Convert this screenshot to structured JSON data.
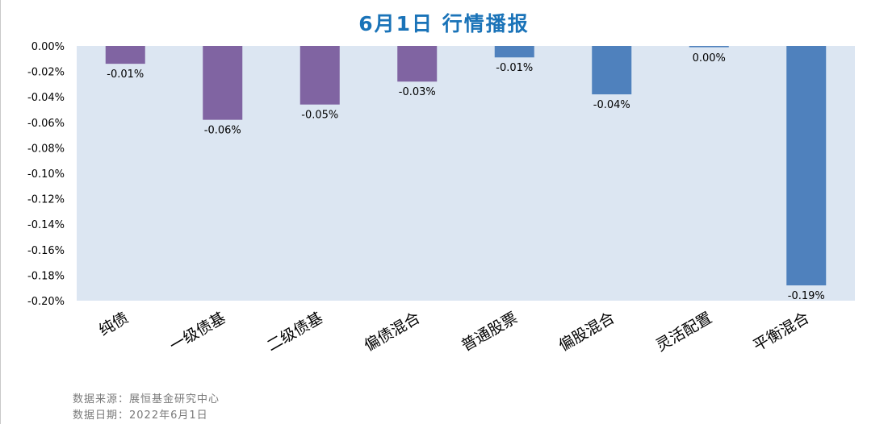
{
  "title": "6月1日  行情播报",
  "source_note": "数据来源：展恒基金研究中心",
  "date_note": "数据日期：2022年6月1日",
  "colors": {
    "purple": "#8064a2",
    "blue": "#4f81bd",
    "plot_bg": "#dce6f2",
    "title": "#1a73b8"
  },
  "chart_data": {
    "type": "bar",
    "title": "6月1日  行情播报",
    "xlabel": "",
    "ylabel": "",
    "ylim": [
      -0.2,
      0.0
    ],
    "y_ticks": [
      "0.00%",
      "-0.02%",
      "-0.04%",
      "-0.06%",
      "-0.08%",
      "-0.10%",
      "-0.12%",
      "-0.14%",
      "-0.16%",
      "-0.18%",
      "-0.20%"
    ],
    "grid": false,
    "legend": "none",
    "categories": [
      "纯债",
      "一级债基",
      "二级债基",
      "偏债混合",
      "普通股票",
      "偏股混合",
      "灵活配置",
      "平衡混合"
    ],
    "values": [
      -0.014,
      -0.058,
      -0.046,
      -0.028,
      -0.009,
      -0.038,
      -0.001,
      -0.188
    ],
    "labels": [
      "-0.01%",
      "-0.06%",
      "-0.05%",
      "-0.03%",
      "-0.01%",
      "-0.04%",
      "0.00%",
      "-0.19%"
    ],
    "bar_colors": [
      "#8064a2",
      "#8064a2",
      "#8064a2",
      "#8064a2",
      "#4f81bd",
      "#4f81bd",
      "#4f81bd",
      "#4f81bd"
    ]
  }
}
